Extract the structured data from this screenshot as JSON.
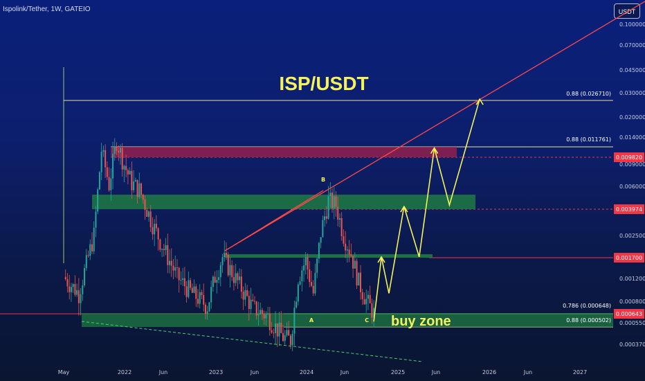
{
  "header": {
    "symbol": "Ispolink/Tether, 1W, GATEIO",
    "currency": "USDT"
  },
  "chart_data": {
    "type": "candlestick",
    "title": "ISP/USDT",
    "y_scale": "log",
    "ylim": [
      0.00032,
      0.13
    ],
    "x_range": [
      "2021-05",
      "2027-06"
    ],
    "y_ticks": [
      "0.100000",
      "0.070000",
      "0.045000",
      "0.030000",
      "0.020000",
      "0.014000",
      "0.009000",
      "0.006000",
      "0.003974",
      "0.002500",
      "0.001700",
      "0.001200",
      "0.000800",
      "0.000550",
      "0.000370"
    ],
    "x_ticks": [
      "May",
      "2022",
      "Jun",
      "2023",
      "Jun",
      "2024",
      "Jun",
      "2025",
      "Jun",
      "2026",
      "Jun",
      "2027"
    ],
    "price_labels": [
      {
        "value": "0.009820",
        "color": "#f23645"
      },
      {
        "value": "0.003974",
        "color": "#f23645"
      },
      {
        "value": "0.001700",
        "color": "#f23645"
      },
      {
        "value": "0.000643",
        "color": "#f23645"
      }
    ],
    "fib_labels": [
      "0.88 (0.026710)",
      "0.88 (0.011761)",
      "0.786 (0.000648)",
      "0.88 (0.000502)"
    ],
    "annotations": [
      "B",
      "A",
      "C",
      "buy zone"
    ],
    "zones": [
      {
        "kind": "supply",
        "color": "#a3214a",
        "price_low": 0.0085,
        "price_high": 0.0115
      },
      {
        "kind": "demand",
        "color": "#1f7a43",
        "price_low": 0.0038,
        "price_high": 0.0051
      },
      {
        "kind": "demand",
        "color": "#1f7a43",
        "price_low": 0.00168,
        "price_high": 0.00176
      },
      {
        "kind": "demand",
        "color": "#1f7a43",
        "price_low": 0.0005,
        "price_high": 0.00065
      }
    ],
    "price_path": [
      [
        "2021-05",
        0.0012
      ],
      [
        "2021-07",
        0.0009
      ],
      [
        "2021-09",
        0.0025
      ],
      [
        "2021-10",
        0.011
      ],
      [
        "2021-11",
        0.006
      ],
      [
        "2021-12",
        0.013
      ],
      [
        "2022-01",
        0.0085
      ],
      [
        "2022-02",
        0.0062
      ],
      [
        "2022-03",
        0.0055
      ],
      [
        "2022-05",
        0.0028
      ],
      [
        "2022-06",
        0.0021
      ],
      [
        "2022-08",
        0.0012
      ],
      [
        "2022-10",
        0.0009
      ],
      [
        "2022-12",
        0.00072
      ],
      [
        "2023-01",
        0.0012
      ],
      [
        "2023-02",
        0.0017
      ],
      [
        "2023-04",
        0.0011
      ],
      [
        "2023-06",
        0.0007
      ],
      [
        "2023-08",
        0.0006
      ],
      [
        "2023-10",
        0.00042
      ],
      [
        "2023-11",
        0.0004
      ],
      [
        "2023-12",
        0.0012
      ],
      [
        "2024-01",
        0.0016
      ],
      [
        "2024-02",
        0.0009
      ],
      [
        "2024-03",
        0.0026
      ],
      [
        "2024-04",
        0.0046
      ],
      [
        "2024-05",
        0.0042
      ],
      [
        "2024-06",
        0.0025
      ],
      [
        "2024-07",
        0.0018
      ],
      [
        "2024-08",
        0.0011
      ],
      [
        "2024-09",
        0.0008
      ],
      [
        "2024-10",
        0.00064
      ]
    ],
    "projection_path": [
      [
        "2024-10",
        0.00055
      ],
      [
        "2024-11",
        0.0017
      ],
      [
        "2024-12",
        0.0009
      ],
      [
        "2025-02",
        0.0041
      ],
      [
        "2025-04",
        0.0017
      ],
      [
        "2025-06",
        0.0114
      ],
      [
        "2025-08",
        0.0042
      ],
      [
        "2025-12",
        0.02671
      ]
    ],
    "trendlines": [
      {
        "color": "#ff4a4a",
        "from": [
          "2023-01",
          0.00175
        ],
        "to": [
          "2027-06",
          0.13
        ]
      },
      {
        "color": "#46d36a",
        "style": "dashed",
        "from": [
          "2021-07",
          0.00055
        ],
        "to": [
          "2025-04",
          0.00033
        ]
      }
    ]
  }
}
